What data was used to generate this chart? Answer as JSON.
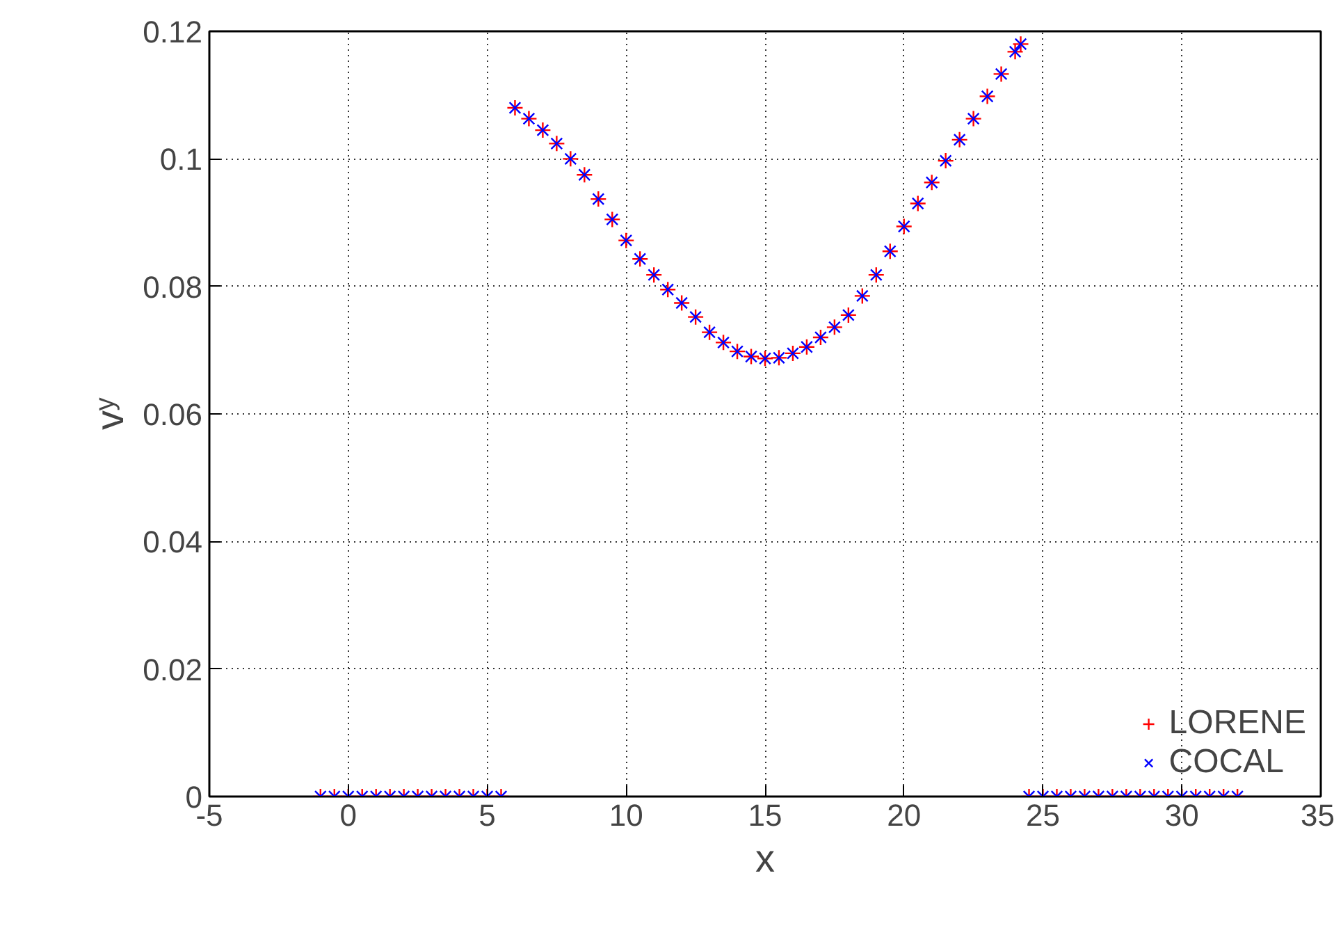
{
  "chart_data": {
    "type": "scatter",
    "xlabel": "x",
    "ylabel": "vʸ",
    "x": [
      -1,
      -0.5,
      0,
      0.5,
      1,
      1.5,
      2,
      2.5,
      3,
      3.5,
      4,
      4.5,
      5,
      5.5,
      6,
      6.5,
      7,
      7.5,
      8,
      8.5,
      9,
      9.5,
      10,
      10.5,
      11,
      11.5,
      12,
      12.5,
      13,
      13.5,
      14,
      14.5,
      15,
      15.5,
      16,
      16.5,
      17,
      17.5,
      18,
      18.5,
      19,
      19.5,
      20,
      20.5,
      21,
      21.5,
      22,
      22.5,
      23,
      23.5,
      24,
      24.2,
      24.5,
      25,
      25.5,
      26,
      26.5,
      27,
      27.5,
      28,
      28.5,
      29,
      29.5,
      30,
      30.5,
      31,
      31.5,
      32
    ],
    "series": [
      {
        "name": "LORENE",
        "color": "#ff0000",
        "marker": "cross",
        "values": [
          0,
          0,
          0,
          0,
          0,
          0,
          0,
          0,
          0,
          0,
          0,
          0,
          0,
          0,
          0.108,
          0.1063,
          0.1045,
          0.1024,
          0.1,
          0.0975,
          0.0937,
          0.0905,
          0.0872,
          0.0843,
          0.0818,
          0.0795,
          0.0774,
          0.0752,
          0.0728,
          0.0712,
          0.0698,
          0.069,
          0.0687,
          0.0688,
          0.0695,
          0.0705,
          0.072,
          0.0736,
          0.0755,
          0.0785,
          0.0818,
          0.0855,
          0.0894,
          0.093,
          0.0963,
          0.0997,
          0.103,
          0.1063,
          0.1098,
          0.1133,
          0.1168,
          0.118,
          0,
          0,
          0,
          0,
          0,
          0,
          0,
          0,
          0,
          0,
          0,
          0,
          0,
          0,
          0,
          0
        ]
      },
      {
        "name": "COCAL",
        "color": "#0000ff",
        "marker": "x",
        "values": [
          0,
          0,
          0,
          0,
          0,
          0,
          0,
          0,
          0,
          0,
          0,
          0,
          0,
          0,
          0.108,
          0.1063,
          0.1045,
          0.1024,
          0.1,
          0.0975,
          0.0937,
          0.0905,
          0.0872,
          0.0843,
          0.0818,
          0.0795,
          0.0774,
          0.0752,
          0.0728,
          0.0712,
          0.0698,
          0.069,
          0.0687,
          0.0688,
          0.0695,
          0.0705,
          0.072,
          0.0736,
          0.0755,
          0.0785,
          0.0818,
          0.0855,
          0.0894,
          0.093,
          0.0963,
          0.0997,
          0.103,
          0.1063,
          0.1098,
          0.1133,
          0.1168,
          0.118,
          0,
          0,
          0,
          0,
          0,
          0,
          0,
          0,
          0,
          0,
          0,
          0,
          0,
          0,
          0,
          0
        ]
      }
    ],
    "xlim": [
      -5,
      35
    ],
    "ylim": [
      0,
      0.12
    ],
    "xticks": [
      -5,
      0,
      5,
      10,
      15,
      20,
      25,
      30,
      35
    ],
    "yticks": [
      0,
      0.02,
      0.04,
      0.06,
      0.08,
      0.1,
      0.12
    ],
    "grid": true,
    "legend": "bottom right"
  }
}
